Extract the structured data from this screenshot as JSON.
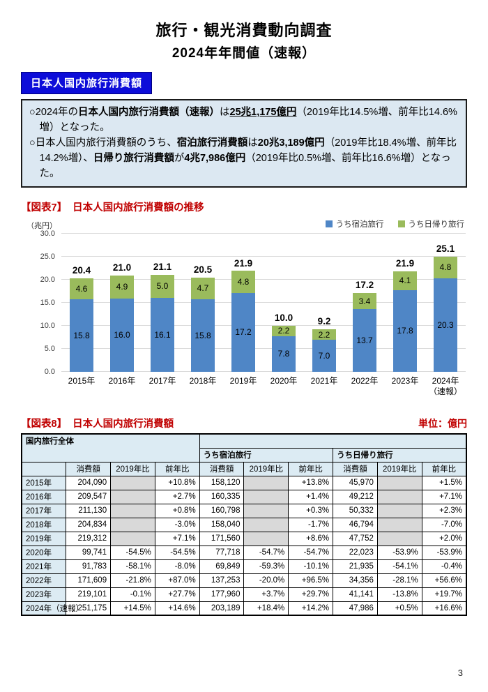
{
  "page": {
    "title_line1": "旅行・観光消費動向調査",
    "title_line2": "2024年年間値（速報）",
    "page_number": "3"
  },
  "section_label": "日本人国内旅行消費額",
  "summary": {
    "bullets": [
      {
        "segments": [
          {
            "text": "○2024年の",
            "bold": false
          },
          {
            "text": "日本人国内旅行消費額（速報）",
            "bold": true
          },
          {
            "text": "は",
            "bold": false
          },
          {
            "text": "25兆1,175億円",
            "bold": true,
            "underline": true
          },
          {
            "text": "（2019年比14.5%増、前年比14.6%増）となった。",
            "bold": false
          }
        ]
      },
      {
        "segments": [
          {
            "text": "○日本人国内旅行消費額のうち、",
            "bold": false
          },
          {
            "text": "宿泊旅行消費額",
            "bold": true
          },
          {
            "text": "は",
            "bold": false
          },
          {
            "text": "20兆3,189億円",
            "bold": true
          },
          {
            "text": "（2019年比18.4%増、前年比14.2%増）、",
            "bold": false
          },
          {
            "text": "日帰り旅行消費額",
            "bold": true
          },
          {
            "text": "が",
            "bold": false
          },
          {
            "text": "4兆7,986億円",
            "bold": true
          },
          {
            "text": "（2019年比0.5%増、前年比16.6%増）となった。",
            "bold": false
          }
        ]
      }
    ]
  },
  "chart_data": {
    "type": "bar",
    "stacked": true,
    "figure_label": "【図表7】",
    "title": "日本人国内旅行消費額の推移",
    "unit_label": "（兆円）",
    "categories": [
      "2015年",
      "2016年",
      "2017年",
      "2018年",
      "2019年",
      "2020年",
      "2021年",
      "2022年",
      "2023年",
      "2024年\n（速報）"
    ],
    "series": [
      {
        "name": "うち宿泊旅行",
        "color": "#4f86c6",
        "values": [
          15.8,
          16.0,
          16.1,
          15.8,
          17.2,
          7.8,
          7.0,
          13.7,
          17.8,
          20.3
        ]
      },
      {
        "name": "うち日帰り旅行",
        "color": "#9abb5c",
        "values": [
          4.6,
          4.9,
          5.0,
          4.7,
          4.8,
          2.2,
          2.2,
          3.4,
          4.1,
          4.8
        ]
      }
    ],
    "totals": [
      20.4,
      21.0,
      21.1,
      20.5,
      21.9,
      10.0,
      9.2,
      17.2,
      21.9,
      25.1
    ],
    "ylim": [
      0,
      30
    ],
    "yticks": [
      "0.0",
      "5.0",
      "10.0",
      "15.0",
      "20.0",
      "25.0",
      "30.0"
    ],
    "grid": true,
    "legend_position": "top-right"
  },
  "table": {
    "figure_label": "【図表8】",
    "title": "日本人国内旅行消費額",
    "unit_label": "単位：億円",
    "group_header": "国内旅行全体",
    "subgroup_headers": [
      "うち宿泊旅行",
      "うち日帰り旅行"
    ],
    "column_headers": [
      "消費額",
      "2019年比",
      "前年比"
    ],
    "rows": [
      [
        "2015年",
        "204,090",
        "",
        "+10.8%",
        "158,120",
        "",
        "+13.8%",
        "45,970",
        "",
        "+1.5%"
      ],
      [
        "2016年",
        "209,547",
        "",
        "+2.7%",
        "160,335",
        "",
        "+1.4%",
        "49,212",
        "",
        "+7.1%"
      ],
      [
        "2017年",
        "211,130",
        "",
        "+0.8%",
        "160,798",
        "",
        "+0.3%",
        "50,332",
        "",
        "+2.3%"
      ],
      [
        "2018年",
        "204,834",
        "",
        "-3.0%",
        "158,040",
        "",
        "-1.7%",
        "46,794",
        "",
        "-7.0%"
      ],
      [
        "2019年",
        "219,312",
        "",
        "+7.1%",
        "171,560",
        "",
        "+8.6%",
        "47,752",
        "",
        "+2.0%"
      ],
      [
        "2020年",
        "99,741",
        "-54.5%",
        "-54.5%",
        "77,718",
        "-54.7%",
        "-54.7%",
        "22,023",
        "-53.9%",
        "-53.9%"
      ],
      [
        "2021年",
        "91,783",
        "-58.1%",
        "-8.0%",
        "69,849",
        "-59.3%",
        "-10.1%",
        "21,935",
        "-54.1%",
        "-0.4%"
      ],
      [
        "2022年",
        "171,609",
        "-21.8%",
        "+87.0%",
        "137,253",
        "-20.0%",
        "+96.5%",
        "34,356",
        "-28.1%",
        "+56.6%"
      ],
      [
        "2023年",
        "219,101",
        "-0.1%",
        "+27.7%",
        "177,960",
        "+3.7%",
        "+29.7%",
        "41,141",
        "-13.8%",
        "+19.7%"
      ],
      [
        "2024年（速報）",
        "251,175",
        "+14.5%",
        "+14.6%",
        "203,189",
        "+18.4%",
        "+14.2%",
        "47,986",
        "+0.5%",
        "+16.6%"
      ]
    ]
  }
}
